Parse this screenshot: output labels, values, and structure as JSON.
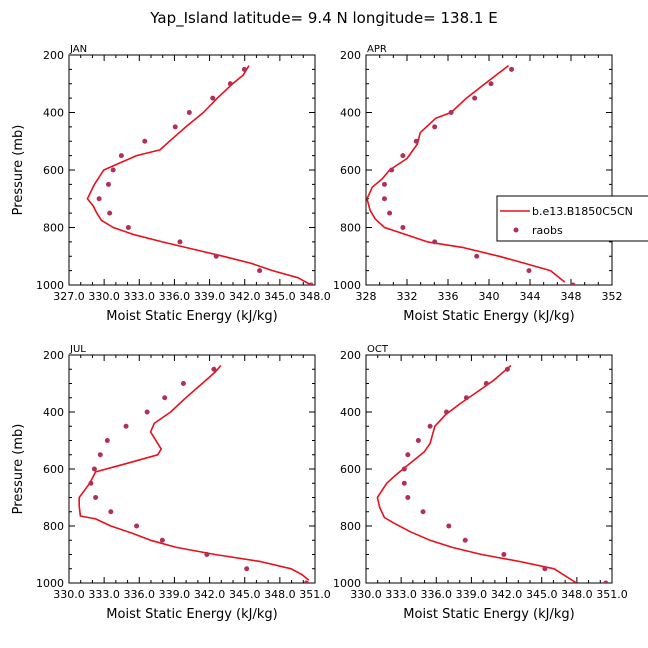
{
  "title": "Yap_Island  latitude= 9.4 N longitude= 138.1 E",
  "legend": {
    "model_label": "b.e13.B1850C5CN",
    "obs_label": "raobs"
  },
  "colors": {
    "model": "#e8101b",
    "obs": "#b0305a",
    "axis": "#000000"
  },
  "chart_data": [
    {
      "type": "line",
      "panel_label": "JAN",
      "xlabel": "Moist Static Energy (kJ/kg)",
      "ylabel": "Pressure (mb)",
      "xlim": [
        327.03,
        348.03
      ],
      "ylim": [
        1000,
        200
      ],
      "xticks": [
        327.03,
        330.03,
        333.03,
        336.03,
        339.03,
        342.03,
        345.03,
        348.03
      ],
      "xtick_labels": [
        "327.0",
        "330.0",
        "333.0",
        "336.0",
        "339.0",
        "342.0",
        "345.0",
        "348.0"
      ],
      "yticks": [
        200,
        400,
        600,
        800,
        1000
      ],
      "ytick_labels": [
        "200",
        "400",
        "600",
        "800",
        "1000"
      ],
      "series": [
        {
          "name": "b.e13.B1850C5CN",
          "style": "line",
          "points": [
            [
              347.7,
              1000
            ],
            [
              346.6,
              975
            ],
            [
              344.4,
              950
            ],
            [
              342.6,
              925
            ],
            [
              340.2,
              900
            ],
            [
              337.6,
              875
            ],
            [
              335.0,
              850
            ],
            [
              332.6,
              825
            ],
            [
              330.8,
              800
            ],
            [
              329.8,
              775
            ],
            [
              329.4,
              750
            ],
            [
              329.1,
              725
            ],
            [
              328.6,
              700
            ],
            [
              329.2,
              650
            ],
            [
              330.0,
              600
            ],
            [
              332.8,
              550
            ],
            [
              334.8,
              530
            ],
            [
              335.6,
              500
            ],
            [
              337.0,
              450
            ],
            [
              338.5,
              400
            ],
            [
              339.7,
              350
            ],
            [
              341.0,
              300
            ],
            [
              341.9,
              270
            ],
            [
              342.4,
              237
            ]
          ]
        },
        {
          "name": "raobs",
          "style": "scatter",
          "points": [
            [
              347.7,
              1000
            ],
            [
              343.3,
              950
            ],
            [
              339.6,
              900
            ],
            [
              336.5,
              850
            ],
            [
              332.1,
              800
            ],
            [
              330.5,
              750
            ],
            [
              329.6,
              700
            ],
            [
              330.4,
              650
            ],
            [
              330.8,
              600
            ],
            [
              331.5,
              550
            ],
            [
              333.5,
              500
            ],
            [
              336.1,
              450
            ],
            [
              337.3,
              400
            ],
            [
              339.3,
              350
            ],
            [
              340.8,
              300
            ],
            [
              342.0,
              250
            ]
          ]
        }
      ]
    },
    {
      "type": "line",
      "panel_label": "APR",
      "xlabel": "Moist Static Energy (kJ/kg)",
      "ylabel": "",
      "xlim": [
        328,
        352
      ],
      "ylim": [
        1000,
        200
      ],
      "xticks": [
        328,
        332,
        336,
        340,
        344,
        348,
        352
      ],
      "xtick_labels": [
        "328",
        "332",
        "336",
        "340",
        "344",
        "348",
        "352"
      ],
      "yticks": [
        200,
        400,
        600,
        800,
        1000
      ],
      "ytick_labels": [
        "200",
        "400",
        "600",
        "800",
        "1000"
      ],
      "series": [
        {
          "name": "b.e13.B1850C5CN",
          "style": "line",
          "points": [
            [
              347.4,
              990
            ],
            [
              346.0,
              950
            ],
            [
              343.5,
              925
            ],
            [
              341.0,
              900
            ],
            [
              337.5,
              870
            ],
            [
              334.0,
              850
            ],
            [
              331.5,
              820
            ],
            [
              329.8,
              800
            ],
            [
              328.9,
              770
            ],
            [
              328.4,
              740
            ],
            [
              328.1,
              700
            ],
            [
              328.6,
              660
            ],
            [
              329.6,
              630
            ],
            [
              330.3,
              600
            ],
            [
              332.0,
              560
            ],
            [
              333.0,
              510
            ],
            [
              333.3,
              470
            ],
            [
              334.8,
              420
            ],
            [
              336.3,
              400
            ],
            [
              337.8,
              350
            ],
            [
              339.6,
              300
            ],
            [
              341.9,
              237
            ]
          ]
        },
        {
          "name": "raobs",
          "style": "scatter",
          "points": [
            [
              348.2,
              1000
            ],
            [
              343.9,
              950
            ],
            [
              338.8,
              900
            ],
            [
              334.7,
              850
            ],
            [
              331.6,
              800
            ],
            [
              330.3,
              750
            ],
            [
              329.8,
              700
            ],
            [
              329.8,
              650
            ],
            [
              330.5,
              600
            ],
            [
              331.6,
              550
            ],
            [
              332.9,
              500
            ],
            [
              334.7,
              450
            ],
            [
              336.3,
              400
            ],
            [
              338.6,
              350
            ],
            [
              340.2,
              300
            ],
            [
              342.2,
              250
            ]
          ]
        }
      ]
    },
    {
      "type": "line",
      "panel_label": "JUL",
      "xlabel": "Moist Static Energy (kJ/kg)",
      "ylabel": "Pressure (mb)",
      "xlim": [
        330.03,
        351.03
      ],
      "ylim": [
        1000,
        200
      ],
      "xticks": [
        330.03,
        333.03,
        336.03,
        339.03,
        342.03,
        345.03,
        348.03,
        351.03
      ],
      "xtick_labels": [
        "330.0",
        "333.0",
        "336.0",
        "339.0",
        "342.0",
        "345.0",
        "348.0",
        "351.0"
      ],
      "yticks": [
        200,
        400,
        600,
        800,
        1000
      ],
      "ytick_labels": [
        "200",
        "400",
        "600",
        "800",
        "1000"
      ],
      "series": [
        {
          "name": "b.e13.B1850C5CN",
          "style": "line",
          "points": [
            [
              350.5,
              990
            ],
            [
              349.9,
              970
            ],
            [
              349.0,
              950
            ],
            [
              346.4,
              925
            ],
            [
              342.5,
              900
            ],
            [
              339.2,
              875
            ],
            [
              337.0,
              850
            ],
            [
              335.4,
              825
            ],
            [
              333.6,
              800
            ],
            [
              332.3,
              775
            ],
            [
              331.0,
              765
            ],
            [
              330.9,
              730
            ],
            [
              330.9,
              700
            ],
            [
              331.8,
              650
            ],
            [
              332.3,
              610
            ],
            [
              335.0,
              580
            ],
            [
              337.6,
              550
            ],
            [
              337.9,
              530
            ],
            [
              337.0,
              470
            ],
            [
              337.3,
              440
            ],
            [
              338.7,
              400
            ],
            [
              340.0,
              350
            ],
            [
              341.4,
              300
            ],
            [
              342.5,
              260
            ],
            [
              343.0,
              237
            ]
          ]
        },
        {
          "name": "raobs",
          "style": "scatter",
          "points": [
            [
              350.3,
              1000
            ],
            [
              345.2,
              950
            ],
            [
              341.8,
              900
            ],
            [
              338.0,
              850
            ],
            [
              335.8,
              800
            ],
            [
              333.6,
              750
            ],
            [
              332.3,
              700
            ],
            [
              331.9,
              650
            ],
            [
              332.2,
              600
            ],
            [
              332.7,
              550
            ],
            [
              333.3,
              500
            ],
            [
              334.9,
              450
            ],
            [
              336.7,
              400
            ],
            [
              338.2,
              350
            ],
            [
              339.8,
              300
            ],
            [
              342.4,
              250
            ]
          ]
        }
      ]
    },
    {
      "type": "line",
      "panel_label": "OCT",
      "xlabel": "Moist Static Energy (kJ/kg)",
      "ylabel": "",
      "xlim": [
        330.03,
        351.03
      ],
      "ylim": [
        1000,
        200
      ],
      "xticks": [
        330.03,
        333.03,
        336.03,
        339.03,
        342.03,
        345.03,
        348.03,
        351.03
      ],
      "xtick_labels": [
        "330.0",
        "333.0",
        "336.0",
        "339.0",
        "342.0",
        "345.0",
        "348.0",
        "351.0"
      ],
      "yticks": [
        200,
        400,
        600,
        800,
        1000
      ],
      "ytick_labels": [
        "200",
        "400",
        "600",
        "800",
        "1000"
      ],
      "series": [
        {
          "name": "b.e13.B1850C5CN",
          "style": "line",
          "points": [
            [
              348.0,
              1000
            ],
            [
              346.1,
              950
            ],
            [
              343.2,
              925
            ],
            [
              339.9,
              900
            ],
            [
              337.4,
              875
            ],
            [
              335.5,
              850
            ],
            [
              333.8,
              820
            ],
            [
              332.4,
              790
            ],
            [
              331.6,
              770
            ],
            [
              331.2,
              735
            ],
            [
              331.0,
              700
            ],
            [
              331.8,
              650
            ],
            [
              332.6,
              620
            ],
            [
              333.8,
              580
            ],
            [
              335.0,
              540
            ],
            [
              335.5,
              510
            ],
            [
              335.9,
              450
            ],
            [
              336.8,
              410
            ],
            [
              338.1,
              370
            ],
            [
              339.5,
              330
            ],
            [
              340.9,
              290
            ],
            [
              342.4,
              237
            ]
          ]
        },
        {
          "name": "raobs",
          "style": "scatter",
          "points": [
            [
              350.5,
              1000
            ],
            [
              345.3,
              950
            ],
            [
              341.8,
              900
            ],
            [
              338.5,
              850
            ],
            [
              337.1,
              800
            ],
            [
              334.9,
              750
            ],
            [
              333.6,
              700
            ],
            [
              333.3,
              650
            ],
            [
              333.3,
              600
            ],
            [
              333.6,
              550
            ],
            [
              334.5,
              500
            ],
            [
              335.5,
              450
            ],
            [
              336.9,
              400
            ],
            [
              338.6,
              350
            ],
            [
              340.3,
              300
            ],
            [
              342.1,
              250
            ]
          ]
        }
      ]
    }
  ]
}
